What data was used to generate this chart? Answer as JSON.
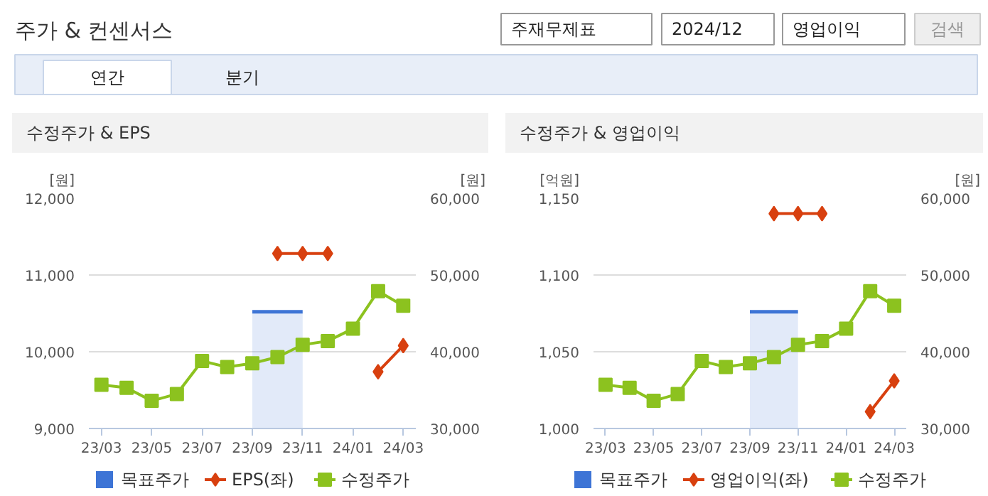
{
  "chart_data": [
    {
      "type": "other",
      "title": "주가 & 컨센서스",
      "annotations": [
        "주재무제표",
        "2024/12",
        "영업이익",
        "검색",
        "연간",
        "분기"
      ]
    },
    {
      "type": "line",
      "title": "수정주가 & EPS",
      "ylabel": "[원]",
      "y2label": "[원]",
      "categories": [
        "23/03",
        null,
        "23/05",
        null,
        "23/07",
        null,
        "23/09",
        null,
        "23/11",
        null,
        "24/01",
        null,
        "24/03"
      ],
      "ylim": [
        9000,
        12000
      ],
      "yticks": [
        {
          "value": 9000,
          "label": "9,000"
        },
        {
          "value": 10000,
          "label": "10,000"
        },
        {
          "value": 11000,
          "label": "11,000"
        },
        {
          "value": 12000,
          "label": "12,000"
        }
      ],
      "y2lim": [
        30000,
        60000
      ],
      "y2ticks": [
        {
          "value": 30000,
          "label": "30,000"
        },
        {
          "value": 40000,
          "label": "40,000"
        },
        {
          "value": 50000,
          "label": "50,000"
        },
        {
          "value": 60000,
          "label": "60,000"
        }
      ],
      "grid": "y",
      "legend": "bottom",
      "series": [
        {
          "name": "목표주가",
          "type": "area",
          "axis": "y2",
          "color": "#3d74d6",
          "values": [
            null,
            null,
            null,
            null,
            null,
            null,
            45200,
            45200,
            45200,
            null,
            null,
            null,
            null
          ]
        },
        {
          "name": "EPS(좌)",
          "color": "#d8400f",
          "marker": "diamond",
          "values": [
            null,
            null,
            null,
            null,
            null,
            null,
            null,
            11280,
            11280,
            11280,
            null,
            9740,
            10080
          ]
        },
        {
          "name": "수정주가",
          "axis": "y2",
          "color": "#8cc21f",
          "marker": "square",
          "values": [
            35700,
            35300,
            33600,
            34500,
            38800,
            38000,
            38500,
            39300,
            40900,
            41400,
            43000,
            47900,
            46000
          ]
        }
      ]
    },
    {
      "type": "line",
      "title": "수정주가 & 영업이익",
      "ylabel": "[억원]",
      "y2label": "[원]",
      "categories": [
        "23/03",
        null,
        "23/05",
        null,
        "23/07",
        null,
        "23/09",
        null,
        "23/11",
        null,
        "24/01",
        null,
        "24/03"
      ],
      "ylim": [
        1000,
        1150
      ],
      "yticks": [
        {
          "value": 1000,
          "label": "1,000"
        },
        {
          "value": 1050,
          "label": "1,050"
        },
        {
          "value": 1100,
          "label": "1,100"
        },
        {
          "value": 1150,
          "label": "1,150"
        }
      ],
      "y2lim": [
        30000,
        60000
      ],
      "y2ticks": [
        {
          "value": 30000,
          "label": "30,000"
        },
        {
          "value": 40000,
          "label": "40,000"
        },
        {
          "value": 50000,
          "label": "50,000"
        },
        {
          "value": 60000,
          "label": "60,000"
        }
      ],
      "grid": "y",
      "legend": "bottom",
      "series": [
        {
          "name": "목표주가",
          "type": "area",
          "axis": "y2",
          "color": "#3d74d6",
          "values": [
            null,
            null,
            null,
            null,
            null,
            null,
            45200,
            45200,
            45200,
            null,
            null,
            null,
            null
          ]
        },
        {
          "name": "영업이익(좌)",
          "color": "#d8400f",
          "marker": "diamond",
          "values": [
            null,
            null,
            null,
            null,
            null,
            null,
            null,
            1140,
            1140,
            1140,
            null,
            1011,
            1031
          ]
        },
        {
          "name": "수정주가",
          "axis": "y2",
          "color": "#8cc21f",
          "marker": "square",
          "values": [
            35700,
            35300,
            33600,
            34500,
            38800,
            38000,
            38500,
            39300,
            40900,
            41400,
            43000,
            47900,
            46000
          ]
        }
      ]
    }
  ]
}
